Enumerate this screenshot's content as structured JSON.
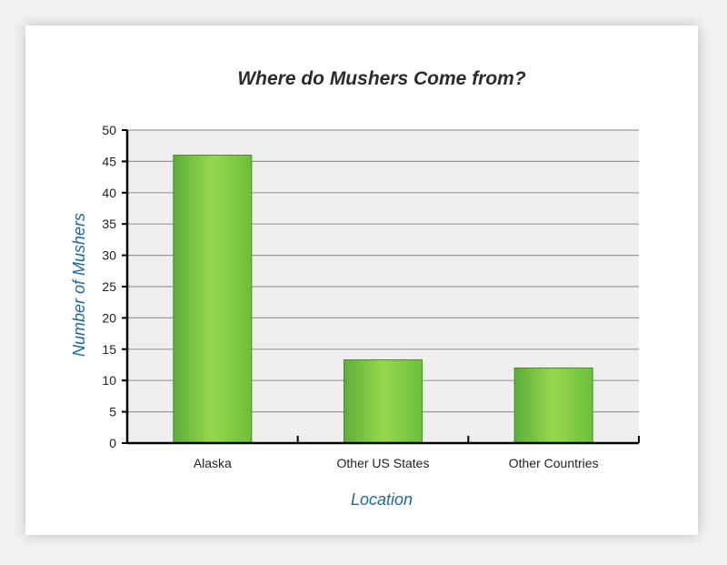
{
  "chart_data": {
    "type": "bar",
    "title": "Where do Mushers Come from?",
    "xlabel": "Location",
    "ylabel": "Number of Mushers",
    "categories": [
      "Alaska",
      "Other US States",
      "Other Countries"
    ],
    "values": [
      46,
      13.3,
      12
    ],
    "ylim": [
      0,
      50
    ],
    "yticks": [
      0,
      5,
      10,
      15,
      20,
      25,
      30,
      35,
      40,
      45,
      50
    ],
    "grid": true,
    "legend": "none",
    "colors": {
      "bar_dark": "#5cae3a",
      "bar_light": "#97d84c",
      "bar_border": "#4a8d28",
      "plot_bg": "#efefef",
      "grid": "#9a9a9a",
      "axis": "#000000",
      "axis_title": "#1f6a96"
    }
  }
}
